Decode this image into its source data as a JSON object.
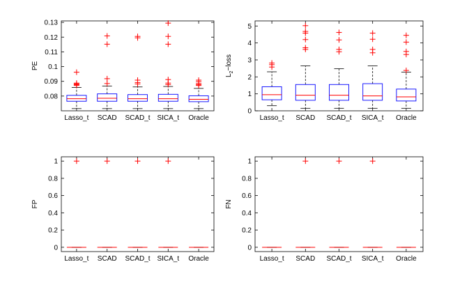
{
  "chart_data": [
    {
      "type": "box",
      "ylabel": "PE",
      "categories": [
        "Lasso_t",
        "SCAD",
        "SCAD_t",
        "SICA_t",
        "Oracle"
      ],
      "ylim": [
        0.07,
        0.131
      ],
      "yticks": [
        0.08,
        0.09,
        0.1,
        0.11,
        0.12,
        0.13
      ],
      "ytick_labels": [
        "0.08",
        "0.09",
        "0.1",
        "0.11",
        "0.12",
        "0.13"
      ],
      "boxes": [
        {
          "lower_whisker": 0.0715,
          "q1": 0.0765,
          "median": 0.0782,
          "q3": 0.0805,
          "upper_whisker": 0.0858,
          "outliers": [
            0.0872,
            0.0878,
            0.0882,
            0.0888,
            0.0962
          ]
        },
        {
          "lower_whisker": 0.0715,
          "q1": 0.0765,
          "median": 0.0785,
          "q3": 0.0815,
          "upper_whisker": 0.0868,
          "outliers": [
            0.0885,
            0.0918,
            0.1152,
            0.1208
          ]
        },
        {
          "lower_whisker": 0.0715,
          "q1": 0.0765,
          "median": 0.0782,
          "q3": 0.081,
          "upper_whisker": 0.0862,
          "outliers": [
            0.0882,
            0.0892,
            0.0908,
            0.1195,
            0.1205
          ]
        },
        {
          "lower_whisker": 0.0715,
          "q1": 0.0765,
          "median": 0.0782,
          "q3": 0.0812,
          "upper_whisker": 0.0865,
          "outliers": [
            0.0878,
            0.0888,
            0.0912,
            0.1152,
            0.1205,
            0.1295
          ]
        },
        {
          "lower_whisker": 0.0715,
          "q1": 0.0762,
          "median": 0.0778,
          "q3": 0.0802,
          "upper_whisker": 0.0852,
          "outliers": [
            0.0872,
            0.0878,
            0.0885,
            0.0898,
            0.0908
          ]
        }
      ]
    },
    {
      "type": "box",
      "ylabel": "L2-loss",
      "ylabel_main": "L",
      "ylabel_sub": "2",
      "ylabel_rest": "−loss",
      "categories": [
        "Lasso_t",
        "SCAD",
        "SCAD_t",
        "SICA_t",
        "Oracle"
      ],
      "ylim": [
        0,
        5.3
      ],
      "yticks": [
        0,
        1,
        2,
        3,
        4,
        5
      ],
      "ytick_labels": [
        "0",
        "1",
        "2",
        "3",
        "4",
        "5"
      ],
      "boxes": [
        {
          "lower_whisker": 0.3,
          "q1": 0.65,
          "median": 0.95,
          "q3": 1.42,
          "upper_whisker": 2.3,
          "outliers": [
            2.58,
            2.72,
            2.82
          ]
        },
        {
          "lower_whisker": 0.15,
          "q1": 0.62,
          "median": 0.92,
          "q3": 1.55,
          "upper_whisker": 2.65,
          "outliers": [
            3.62,
            3.72,
            4.2,
            4.58,
            4.68,
            5.02
          ]
        },
        {
          "lower_whisker": 0.15,
          "q1": 0.62,
          "median": 0.92,
          "q3": 1.55,
          "upper_whisker": 2.48,
          "outliers": [
            3.48,
            3.62,
            4.18,
            4.62
          ]
        },
        {
          "lower_whisker": 0.15,
          "q1": 0.62,
          "median": 0.88,
          "q3": 1.6,
          "upper_whisker": 2.65,
          "outliers": [
            3.42,
            3.62,
            4.22,
            4.58
          ]
        },
        {
          "lower_whisker": 0.15,
          "q1": 0.58,
          "median": 0.82,
          "q3": 1.28,
          "upper_whisker": 2.28,
          "outliers": [
            2.38,
            3.32,
            3.5,
            4.05,
            4.45
          ]
        }
      ]
    },
    {
      "type": "box",
      "ylabel": "FP",
      "categories": [
        "Lasso_t",
        "SCAD",
        "SCAD_t",
        "SICA_t",
        "Oracle"
      ],
      "ylim": [
        -0.05,
        1.05
      ],
      "yticks": [
        0,
        0.2,
        0.4,
        0.6,
        0.8,
        1
      ],
      "ytick_labels": [
        "0",
        "0.2",
        "0.4",
        "0.6",
        "0.8",
        "1"
      ],
      "boxes": [
        {
          "lower_whisker": 0,
          "q1": 0,
          "median": 0,
          "q3": 0,
          "upper_whisker": 0,
          "outliers": [
            1
          ]
        },
        {
          "lower_whisker": 0,
          "q1": 0,
          "median": 0,
          "q3": 0,
          "upper_whisker": 0,
          "outliers": [
            1
          ]
        },
        {
          "lower_whisker": 0,
          "q1": 0,
          "median": 0,
          "q3": 0,
          "upper_whisker": 0,
          "outliers": [
            1
          ]
        },
        {
          "lower_whisker": 0,
          "q1": 0,
          "median": 0,
          "q3": 0,
          "upper_whisker": 0,
          "outliers": [
            1
          ]
        },
        {
          "lower_whisker": 0,
          "q1": 0,
          "median": 0,
          "q3": 0,
          "upper_whisker": 0,
          "outliers": []
        }
      ]
    },
    {
      "type": "box",
      "ylabel": "FN",
      "categories": [
        "Lasso_t",
        "SCAD",
        "SCAD_t",
        "SICA_t",
        "Oracle"
      ],
      "ylim": [
        -0.05,
        1.05
      ],
      "yticks": [
        0,
        0.2,
        0.4,
        0.6,
        0.8,
        1
      ],
      "ytick_labels": [
        "0",
        "0.2",
        "0.4",
        "0.6",
        "0.8",
        "1"
      ],
      "boxes": [
        {
          "lower_whisker": 0,
          "q1": 0,
          "median": 0,
          "q3": 0,
          "upper_whisker": 0,
          "outliers": []
        },
        {
          "lower_whisker": 0,
          "q1": 0,
          "median": 0,
          "q3": 0,
          "upper_whisker": 0,
          "outliers": [
            1
          ]
        },
        {
          "lower_whisker": 0,
          "q1": 0,
          "median": 0,
          "q3": 0,
          "upper_whisker": 0,
          "outliers": [
            1
          ]
        },
        {
          "lower_whisker": 0,
          "q1": 0,
          "median": 0,
          "q3": 0,
          "upper_whisker": 0,
          "outliers": [
            1
          ]
        },
        {
          "lower_whisker": 0,
          "q1": 0,
          "median": 0,
          "q3": 0,
          "upper_whisker": 0,
          "outliers": []
        }
      ]
    }
  ],
  "colors": {
    "box": "#0000ff",
    "median": "#ff0000",
    "outlier": "#ff0000",
    "whisker": "#000000",
    "axis": "#000000"
  }
}
